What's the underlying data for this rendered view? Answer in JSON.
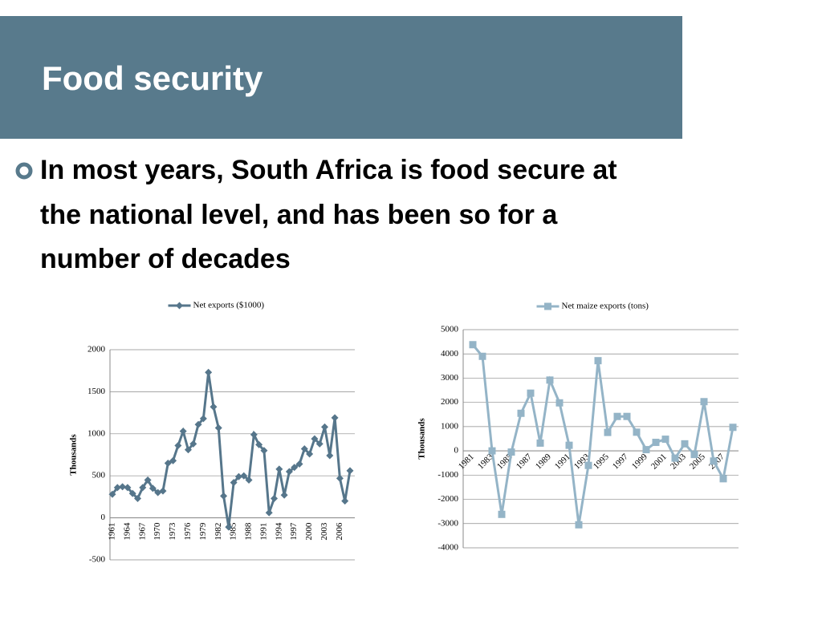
{
  "title": "Food security",
  "bullet": [
    "In most years, South Africa is food secure at",
    "the national level, and has been so for a",
    "number of decades"
  ],
  "chart_data": [
    {
      "type": "line",
      "ylabel": "Thousands",
      "ylim": [
        -500,
        2000
      ],
      "yticks": [
        -500,
        0,
        500,
        1000,
        1500,
        2000
      ],
      "grid": true,
      "marker": "diamond",
      "categories": [
        "1961",
        null,
        null,
        "1964",
        null,
        null,
        "1967",
        null,
        null,
        "1970",
        null,
        null,
        "1973",
        null,
        null,
        "1976",
        null,
        null,
        "1979",
        null,
        null,
        "1982",
        null,
        null,
        "1985",
        null,
        null,
        "1988",
        null,
        null,
        "1991",
        null,
        null,
        "1994",
        null,
        null,
        "1997",
        null,
        null,
        "2000",
        null,
        null,
        "2003",
        null,
        null,
        "2006",
        null,
        null
      ],
      "series": [
        {
          "name": "Net exports ($1000)",
          "color": "#56768b",
          "values": [
            280,
            360,
            370,
            360,
            290,
            230,
            360,
            450,
            350,
            300,
            320,
            650,
            680,
            860,
            1030,
            810,
            880,
            1110,
            1180,
            1730,
            1320,
            1070,
            260,
            -110,
            420,
            490,
            500,
            450,
            990,
            870,
            800,
            60,
            230,
            580,
            270,
            550,
            600,
            640,
            820,
            760,
            940,
            880,
            1080,
            740,
            1190,
            470,
            200,
            560
          ]
        }
      ]
    },
    {
      "type": "line",
      "ylabel": "Thousands",
      "ylim": [
        -4000,
        5000
      ],
      "yticks": [
        -4000,
        -3000,
        -2000,
        -1000,
        0,
        1000,
        2000,
        3000,
        4000,
        5000
      ],
      "grid": true,
      "marker": "square",
      "categories": [
        "1981",
        null,
        "1983",
        null,
        "1985",
        null,
        "1987",
        null,
        "1989",
        null,
        "1991",
        null,
        "1993",
        null,
        "1995",
        null,
        "1997",
        null,
        "1999",
        null,
        "2001",
        null,
        "2003",
        null,
        "2005",
        null,
        "2007",
        null
      ],
      "series": [
        {
          "name": "Net maize exports (tons)",
          "color": "#94b4c7",
          "values": [
            4380,
            3900,
            0,
            -2620,
            -50,
            1550,
            2380,
            320,
            2920,
            1980,
            230,
            -3050,
            -600,
            3720,
            760,
            1420,
            1420,
            770,
            50,
            350,
            480,
            -300,
            290,
            -150,
            2030,
            -420,
            -1150,
            970
          ]
        }
      ]
    }
  ]
}
